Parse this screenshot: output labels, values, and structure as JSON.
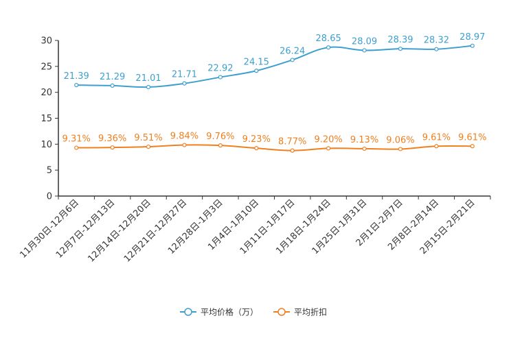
{
  "chart_data": {
    "type": "line",
    "title": "",
    "xlabel": "",
    "ylabel": "",
    "ylim": [
      0,
      30
    ],
    "yticks": [
      0,
      5,
      10,
      15,
      20,
      25,
      30
    ],
    "grid": false,
    "legend_position": "bottom-center",
    "categories": [
      "11月30日-12月6日",
      "12月7日-12月13日",
      "12月14日-12月20日",
      "12月21日-12月27日",
      "12月28日-1月3日",
      "1月4日-1月10日",
      "1月11日-1月17日",
      "1月18日-1月24日",
      "1月25日-1月31日",
      "2月1日-2月7日",
      "2月8日-2月14日",
      "2月15日-2月21日"
    ],
    "series": [
      {
        "name": "平均价格（万）",
        "color": "#3e9fcf",
        "values": [
          21.39,
          21.29,
          21.01,
          21.71,
          22.92,
          24.15,
          26.24,
          28.65,
          28.09,
          28.39,
          28.32,
          28.97
        ],
        "labels": [
          "21.39",
          "21.29",
          "21.01",
          "21.71",
          "22.92",
          "24.15",
          "26.24",
          "28.65",
          "28.09",
          "28.39",
          "28.32",
          "28.97"
        ]
      },
      {
        "name": "平均折扣",
        "color": "#f07f1e",
        "values": [
          9.31,
          9.36,
          9.51,
          9.84,
          9.76,
          9.23,
          8.77,
          9.2,
          9.13,
          9.06,
          9.61,
          9.61
        ],
        "labels": [
          "9.31%",
          "9.36%",
          "9.51%",
          "9.84%",
          "9.76%",
          "9.23%",
          "8.77%",
          "9.20%",
          "9.13%",
          "9.06%",
          "9.61%",
          "9.61%"
        ]
      }
    ]
  }
}
